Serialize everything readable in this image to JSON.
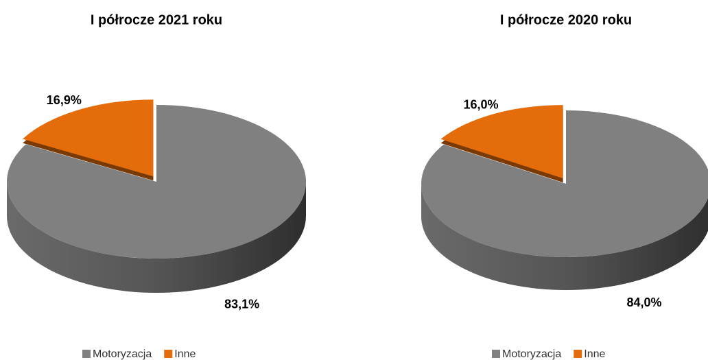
{
  "chart_data": [
    {
      "type": "pie",
      "title": "I półrocze 2021 roku",
      "categories": [
        "Motoryzacja",
        "Inne"
      ],
      "values": [
        83.1,
        16.9
      ],
      "value_labels": [
        "83,1%",
        "16,9%"
      ],
      "colors": [
        "#808080",
        "#e46c0a"
      ],
      "legend": "bottom"
    },
    {
      "type": "pie",
      "title": "I półrocze 2020 roku",
      "categories": [
        "Motoryzacja",
        "Inne"
      ],
      "values": [
        84.0,
        16.0
      ],
      "value_labels": [
        "84,0%",
        "16,0%"
      ],
      "colors": [
        "#808080",
        "#e46c0a"
      ],
      "legend": "bottom"
    }
  ]
}
